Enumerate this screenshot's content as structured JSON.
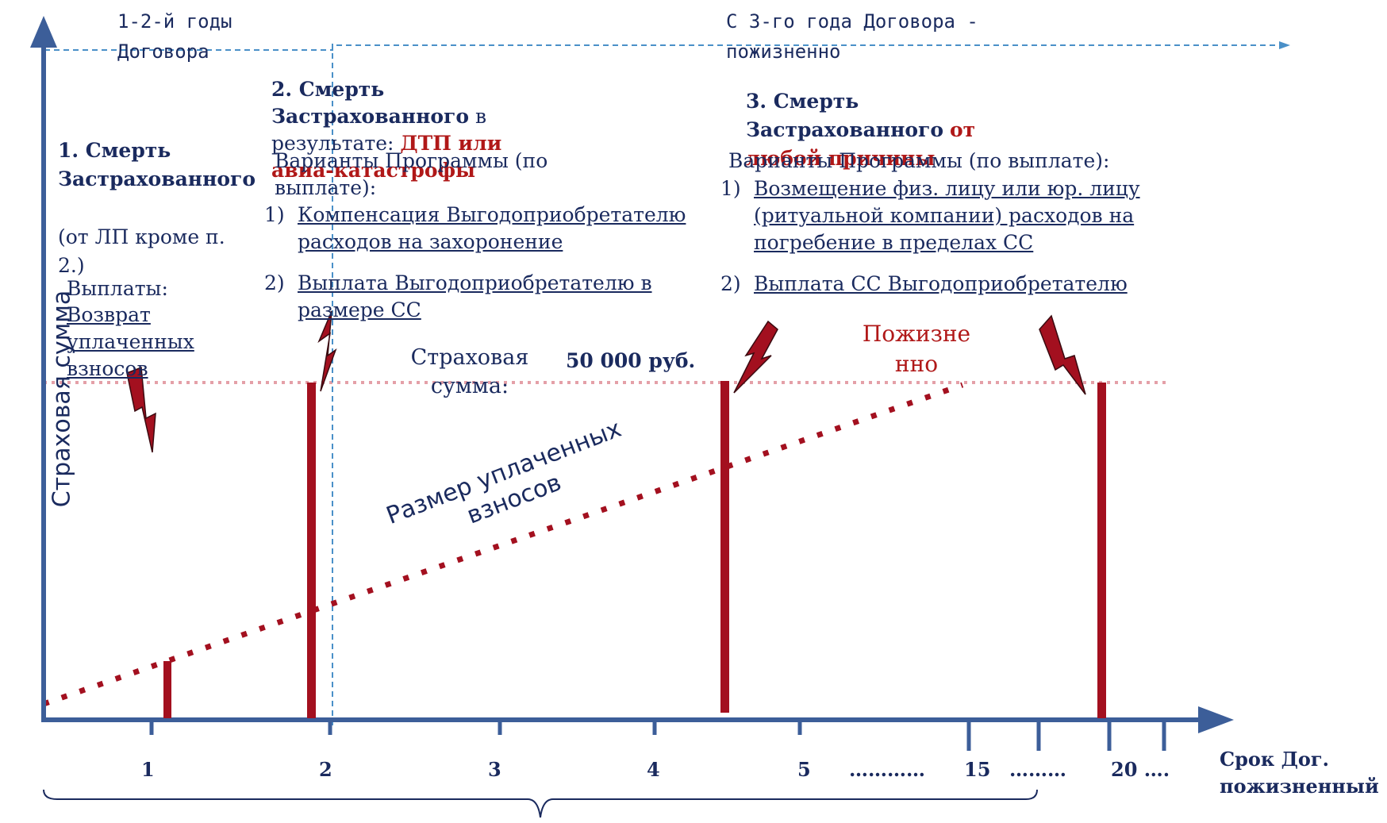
{
  "colors": {
    "axis": "#3c5e99",
    "dark_red": "#a3101f",
    "text_navy": "#1a2a5e",
    "pink": "#e4a0a8",
    "dashed_blue": "#4a90c8"
  },
  "y_axis_label": "Страховая сумма",
  "periods": {
    "first": "1-2-й годы Договора",
    "second": "С 3-го года Договора - пожизненно"
  },
  "case1": {
    "title": "1. Смерть Застрахованного",
    "note": "(от ЛП кроме п. 2.)",
    "payouts_label": "Выплаты:",
    "payout": "Возврат уплаченных взносов"
  },
  "case2": {
    "title_bold": "2. Смерть Застрахованного",
    "title_rest": "в результате:",
    "cause": "ДТП или авиа-катастрофы",
    "options_label": "Варианты Программы (по выплате):",
    "options": [
      {
        "num": "1)",
        "text": "Компенсация Выгодоприобретателю расходов на захоронение"
      },
      {
        "num": "2)",
        "text": "Выплата Выгодоприобретателю в размере СС"
      }
    ]
  },
  "case3": {
    "title_bold": "3. Смерть Застрахованного",
    "cause": "от любой причины",
    "options_label": "Варианты Программы (по выплате):",
    "options": [
      {
        "num": "1)",
        "text": "Возмещение физ. лицу или юр. лицу (ритуальной компании) расходов на погребение в пределах СС"
      },
      {
        "num": "2)",
        "text": "Выплата СС Выгодоприобретателю"
      }
    ]
  },
  "sum_insured": {
    "label": "Страховая сумма:",
    "value": "50 000 руб."
  },
  "lifetime_label": "Пожизненно",
  "premiums_label": "Размер уплаченных взносов",
  "x_axis": {
    "ticks": [
      "1",
      "2",
      "3",
      "4",
      "5",
      "…………",
      "15",
      "………",
      "20 …."
    ],
    "label": "Срок Дог. пожизненный"
  }
}
